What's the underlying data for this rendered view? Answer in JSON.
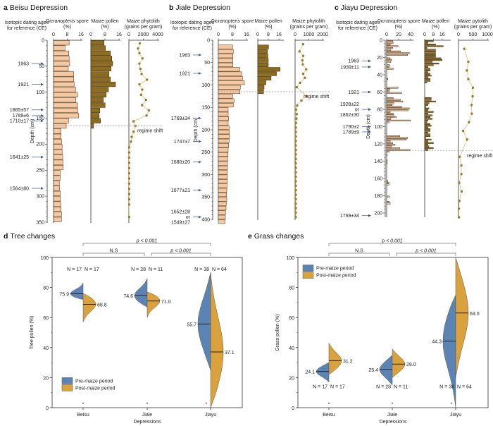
{
  "colors": {
    "age_text": "#4a6ea8",
    "dicranopteris_bar": "#f6c8a2",
    "maize_pollen_bar": "#8d6b1f",
    "phytolith_point": "#9c7a24",
    "phytolith_line": "#dcc07a",
    "pre_maize": "#5b84b5",
    "post_maize": "#d9a23c",
    "regime_line": "#999999"
  },
  "chart_data": [
    {
      "type": "bar",
      "panel": "a",
      "title": "Beisu Depression",
      "age_header": [
        "Isotopic dating ages",
        "for reference (CE)"
      ],
      "ylabel": "Depth (cm)",
      "ylim": [
        0,
        350
      ],
      "yticks": [
        "0",
        "50",
        "100",
        "150",
        "200",
        "250",
        "300",
        "350"
      ],
      "ages": [
        {
          "label": "1963",
          "depth": 45
        },
        {
          "label": "1921",
          "depth": 85
        },
        {
          "label": "1865±57",
          "depth": 134
        },
        {
          "label": "1789±6",
          "depth": 145
        },
        {
          "label": "1710±17",
          "depth": 155
        },
        {
          "label": "1641±25",
          "depth": 225
        },
        {
          "label": "1564±80",
          "depth": 285
        }
      ],
      "regime_shift": {
        "label": "regime shift",
        "depth": 165
      },
      "dicranopteris": {
        "header": [
          "Dicranopteris",
          " spore",
          "(%)"
        ],
        "ticks": [
          "0",
          "8",
          "16"
        ],
        "xlim": [
          0,
          16
        ],
        "depth_start": 0,
        "step": 10,
        "values": [
          9.1,
          6.7,
          8.9,
          9.1,
          9.4,
          8.6,
          11.8,
          11.8,
          12.0,
          12.9,
          14.0,
          13.0,
          14.0,
          14.1,
          14.7,
          8.8,
          7.4,
          4.4,
          4.4,
          4.7,
          5.0,
          5.1,
          5.4,
          5.5,
          5.6,
          3.9,
          3.9,
          3.4,
          3.6,
          3.9,
          4.0,
          4.2,
          4.4,
          4.7,
          4.6
        ]
      },
      "maize_pollen": {
        "header": [
          "Maize pollen",
          "(%)"
        ],
        "ticks": [
          "0",
          "8",
          "16"
        ],
        "xlim": [
          0,
          16
        ],
        "depth_start": 0,
        "step": 10,
        "values": [
          7.5,
          8.3,
          11.1,
          11.9,
          12.4,
          11.5,
          10.3,
          11.1,
          14.0,
          10.0,
          8.7,
          7.1,
          8.1,
          5.1,
          4.7,
          5.5,
          1.5
        ]
      },
      "maize_phytolith": {
        "header": [
          "Maize phytolith",
          "(grains per gram)"
        ],
        "ticks": [
          "0",
          "2000",
          "4000"
        ],
        "xlim": [
          0,
          4000
        ],
        "points": [
          [
            6,
            1500
          ],
          [
            16,
            1270
          ],
          [
            25,
            1460
          ],
          [
            35,
            1890
          ],
          [
            45,
            1460
          ],
          [
            55,
            1590
          ],
          [
            65,
            1760
          ],
          [
            76,
            2500
          ],
          [
            85,
            1460
          ],
          [
            95,
            1850
          ],
          [
            105,
            1690
          ],
          [
            115,
            2370
          ],
          [
            125,
            1820
          ],
          [
            135,
            2760
          ],
          [
            145,
            2440
          ],
          [
            156,
            650
          ],
          [
            165,
            910
          ],
          [
            176,
            650
          ],
          [
            186,
            390
          ],
          [
            195,
            290
          ],
          [
            206,
            40
          ],
          [
            216,
            40
          ],
          [
            226,
            40
          ],
          [
            236,
            40
          ],
          [
            246,
            40
          ],
          [
            256,
            40
          ],
          [
            266,
            40
          ],
          [
            276,
            40
          ],
          [
            286,
            40
          ],
          [
            296,
            40
          ],
          [
            306,
            40
          ],
          [
            316,
            40
          ],
          [
            340,
            40
          ]
        ]
      }
    },
    {
      "type": "bar",
      "panel": "b",
      "title": "Jiale Depression",
      "age_header": [
        "Isotopic dating ages",
        "for reference (CE)"
      ],
      "ylabel": "Depth (cm)",
      "ylim": [
        0,
        400
      ],
      "yticks": [
        "0",
        "50",
        "100",
        "150",
        "200",
        "250",
        "300",
        "350",
        "400"
      ],
      "ages": [
        {
          "label": "1963",
          "depth": 33
        },
        {
          "label": "1921",
          "depth": 74
        },
        {
          "label": "1769±34",
          "depth": 174
        },
        {
          "label": "1747±7",
          "depth": 226
        },
        {
          "label": "1680±20",
          "depth": 272
        },
        {
          "label": "1677±21",
          "depth": 335
        },
        {
          "label": "1652±28",
          "depth": 383
        },
        {
          "label": "or",
          "depth": 392
        },
        {
          "label": "1549±27",
          "depth": 401
        }
      ],
      "regime_shift": {
        "label": "regime shift",
        "depth": 115
      },
      "dicranopteris": {
        "header": [
          "Dicranopteris",
          " spore",
          "(%)"
        ],
        "ticks": [
          "0",
          "8",
          "16"
        ],
        "xlim": [
          0,
          16
        ],
        "depth_start": 10,
        "step": 10,
        "values": [
          8.1,
          8.5,
          8.3,
          8.3,
          8.3,
          12.1,
          13.3,
          13.7,
          14.8,
          12.5,
          12.3,
          8.1,
          8.9,
          8.5,
          5.6,
          5.6,
          5.9,
          5.6,
          6.1,
          6.2,
          6.4,
          6.1,
          5.9,
          5.6,
          5.5,
          5.3,
          5.2,
          5.2,
          5.1,
          5.1,
          5.1,
          4.9,
          4.8,
          4.7,
          4.8,
          4.5,
          4.4,
          4.1,
          4.0,
          3.9
        ]
      },
      "maize_pollen": {
        "header": [
          "Maize pollen",
          "(%)"
        ],
        "ticks": [
          "0",
          "8",
          "16"
        ],
        "xlim": [
          0,
          16
        ],
        "depth_start": 10,
        "step": 10,
        "values": [
          8.2,
          7.3,
          7.6,
          8.0,
          8.0,
          16.9,
          14.2,
          10.1,
          6.2,
          4.8,
          4.4
        ]
      },
      "maize_phytolith": {
        "header": [
          "Maize phytolith",
          "(grains per gram)"
        ],
        "ticks": [
          "0",
          "1000",
          "2000"
        ],
        "xlim": [
          0,
          2000
        ],
        "points": [
          [
            9,
            580
          ],
          [
            25,
            320
          ],
          [
            35,
            590
          ],
          [
            45,
            530
          ],
          [
            54,
            560
          ],
          [
            65,
            810
          ],
          [
            75,
            590
          ],
          [
            84,
            710
          ],
          [
            95,
            360
          ],
          [
            105,
            120
          ],
          [
            125,
            830
          ],
          [
            135,
            460
          ],
          [
            146,
            150
          ],
          [
            155,
            70
          ],
          [
            165,
            120
          ],
          [
            175,
            100
          ],
          [
            185,
            60
          ],
          [
            195,
            50
          ],
          [
            205,
            50
          ],
          [
            215,
            50
          ],
          [
            225,
            50
          ],
          [
            235,
            50
          ],
          [
            245,
            50
          ],
          [
            255,
            50
          ],
          [
            265,
            50
          ],
          [
            275,
            50
          ],
          [
            285,
            50
          ],
          [
            295,
            50
          ],
          [
            305,
            50
          ],
          [
            315,
            50
          ],
          [
            325,
            50
          ],
          [
            335,
            50
          ],
          [
            345,
            50
          ],
          [
            355,
            50
          ],
          [
            365,
            50
          ],
          [
            375,
            50
          ],
          [
            385,
            50
          ],
          [
            395,
            50
          ]
        ]
      }
    },
    {
      "type": "bar",
      "panel": "c",
      "title": "Jiayu Depression",
      "age_header": [
        "Isotopic dating ages",
        "for reference (CE)"
      ],
      "ylabel": "Depth (cm)",
      "ylim": [
        0,
        200
      ],
      "yticks": [
        "0",
        "20",
        "40",
        "60",
        "80",
        "100",
        "120",
        "140",
        "160",
        "180",
        "200"
      ],
      "ages": [
        {
          "label": "1963",
          "depth": 24
        },
        {
          "label": "1939±11",
          "depth": 31
        },
        {
          "label": "1921",
          "depth": 60
        },
        {
          "label": "1928±22",
          "depth": 74
        },
        {
          "label": "or",
          "depth": 79
        },
        {
          "label": "1862±30",
          "depth": 84
        },
        {
          "label": "1790±2",
          "depth": 100
        },
        {
          "label": "1789±9",
          "depth": 104
        },
        {
          "label": "1769±34",
          "depth": 203
        }
      ],
      "regime_shift": {
        "label": "regime shift",
        "depth": 128
      },
      "dicranopteris": {
        "header": [
          "Dicranopteris",
          " spore",
          "(%)"
        ],
        "ticks": [
          "0",
          "20",
          "40"
        ],
        "xlim": [
          0,
          40
        ],
        "depth_start": 0,
        "step": 2,
        "values": [
          10,
          11,
          6,
          19,
          10,
          7,
          23,
          38,
          35,
          0,
          6,
          8,
          7,
          0,
          5,
          4,
          11,
          0,
          0,
          0,
          0,
          0,
          2,
          0,
          0,
          0,
          0,
          19,
          5,
          4,
          25,
          0,
          0,
          11,
          23,
          27,
          12,
          9,
          25,
          38,
          36,
          6,
          11,
          12,
          16,
          7,
          40,
          4,
          0,
          0,
          0,
          0,
          0,
          0,
          0,
          22,
          35,
          33,
          6,
          10,
          14,
          8,
          22,
          39,
          4,
          0,
          1,
          0,
          0,
          1,
          1,
          1,
          0,
          0,
          0,
          0,
          0,
          0,
          0,
          0,
          0,
          2,
          4,
          4,
          0,
          0,
          0,
          0,
          0,
          0,
          5,
          0,
          0,
          4,
          6
        ]
      },
      "maize_pollen": {
        "header": [
          "Maize pollen",
          "(%)"
        ],
        "ticks": [
          "0",
          "8",
          "16"
        ],
        "xlim": [
          0,
          20
        ],
        "depth_start": 0,
        "step": 2,
        "values": [
          8,
          3,
          10,
          17,
          2,
          10,
          10,
          10,
          10,
          10,
          15,
          16,
          7,
          13,
          8,
          3,
          5,
          5,
          3,
          5,
          6,
          3,
          5,
          5,
          2,
          0,
          0,
          0,
          0,
          0,
          0,
          0,
          0,
          6,
          6,
          10,
          4,
          3,
          1,
          4,
          3,
          8,
          3,
          7,
          5,
          7,
          3,
          2,
          5,
          6,
          3,
          5,
          5,
          3,
          5,
          5,
          1,
          6,
          3,
          8,
          3,
          4,
          8,
          3
        ]
      },
      "maize_phytolith": {
        "header": [
          "Maize pytolith",
          "(grains per gram)"
        ],
        "ticks": [
          "0",
          "500",
          "1000"
        ],
        "xlim": [
          0,
          1000
        ],
        "points": [
          [
            10,
            200
          ],
          [
            25,
            340
          ],
          [
            35,
            290
          ],
          [
            45,
            340
          ],
          [
            55,
            500
          ],
          [
            65,
            490
          ],
          [
            75,
            450
          ],
          [
            85,
            460
          ],
          [
            95,
            360
          ],
          [
            105,
            160
          ],
          [
            115,
            300
          ],
          [
            135,
            40
          ],
          [
            145,
            100
          ],
          [
            155,
            100
          ],
          [
            165,
            25
          ],
          [
            175,
            110
          ],
          [
            186,
            30
          ],
          [
            195,
            15
          ],
          [
            205,
            15
          ]
        ]
      }
    },
    {
      "type": "violin",
      "panel": "d",
      "title": "Tree changes",
      "xlabel": "Depressions",
      "ylabel": "Tree pollen (%)",
      "ylim": [
        0,
        100
      ],
      "yticks": [
        "0",
        "20",
        "40",
        "60",
        "80",
        "100"
      ],
      "categories": [
        "Beisu",
        "Jiale",
        "Jiayu"
      ],
      "legend": {
        "position": "bottom-left",
        "items": [
          "Pre-maize period",
          "Post-maize period"
        ]
      },
      "series": [
        {
          "name": "Pre-maize period",
          "medians": [
            75.9,
            74.6,
            55.7
          ],
          "median_labels": [
            "75.9",
            "74.6",
            "55.7"
          ],
          "min": [
            72,
            67,
            25
          ],
          "max": [
            83,
            86,
            90
          ],
          "n_labels": [
            "N = 17",
            "N = 28",
            "N = 38"
          ]
        },
        {
          "name": "Post-maize period",
          "medians": [
            68.8,
            71.0,
            37.1
          ],
          "median_labels": [
            "68.8",
            "71.0",
            "37.1"
          ],
          "min": [
            57,
            60,
            0
          ],
          "max": [
            76,
            77,
            90
          ],
          "n_labels": [
            "N = 17",
            "N = 11",
            "N = 64"
          ]
        }
      ],
      "n_label_position": "top",
      "significance": [
        {
          "from": 0,
          "to": 2,
          "label": "p < 0.001"
        },
        {
          "from": 0,
          "to": 1,
          "label": "N.S"
        },
        {
          "from": 1,
          "to": 2,
          "label": "p < 0.001"
        }
      ],
      "asterisks": [
        "*",
        "*",
        "*"
      ]
    },
    {
      "type": "violin",
      "panel": "e",
      "title": "Grass changes",
      "xlabel": "Depressions",
      "ylabel": "Grass pollen (%)",
      "ylim": [
        0,
        100
      ],
      "yticks": [
        "0",
        "20",
        "40",
        "60",
        "80",
        "100"
      ],
      "categories": [
        "Beisu",
        "Jiale",
        "Jiayu"
      ],
      "legend": {
        "position": "top-left",
        "items": [
          "Pre-maize period",
          "Post-maize period"
        ]
      },
      "series": [
        {
          "name": "Pre-maize period",
          "medians": [
            24.1,
            25.4,
            44.3
          ],
          "median_labels": [
            "24.1",
            "25.4",
            "44.3"
          ],
          "min": [
            17,
            15,
            0
          ],
          "max": [
            30,
            35,
            75
          ],
          "n_labels": [
            "N = 17",
            "N = 28",
            "N = 38"
          ]
        },
        {
          "name": "Post-maize period",
          "medians": [
            31.2,
            29.0,
            63.0
          ],
          "median_labels": [
            "31.2",
            "29.0",
            "63.0"
          ],
          "min": [
            22,
            20,
            20
          ],
          "max": [
            43,
            39,
            100
          ],
          "n_labels": [
            "N = 17",
            "N = 11",
            "N = 64"
          ]
        }
      ],
      "n_label_position": "bottom",
      "significance": [
        {
          "from": 0,
          "to": 2,
          "label": "p < 0.001"
        },
        {
          "from": 0,
          "to": 1,
          "label": "N.S"
        },
        {
          "from": 1,
          "to": 2,
          "label": "p < 0.001"
        }
      ],
      "asterisks": [
        "*",
        "*",
        "*"
      ]
    }
  ]
}
